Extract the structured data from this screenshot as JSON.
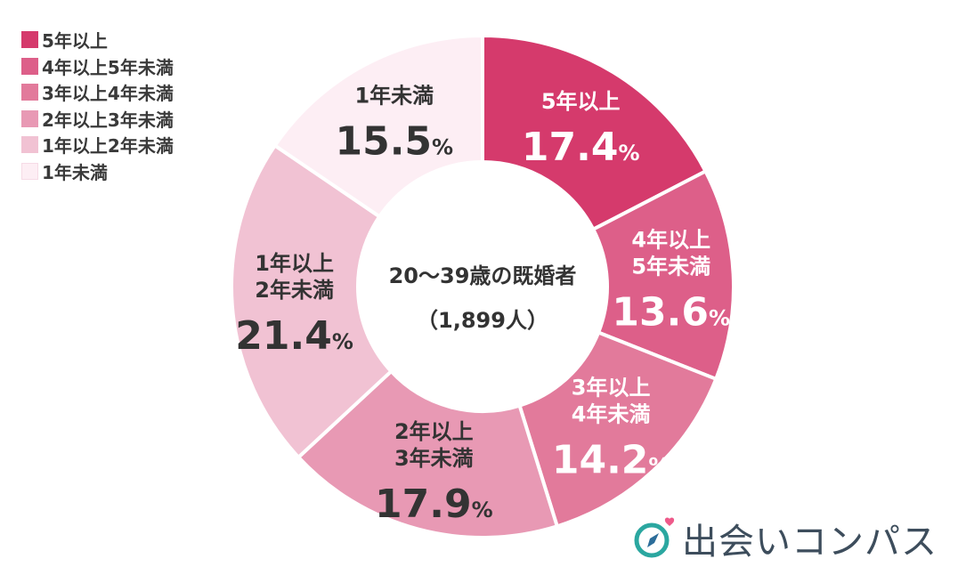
{
  "chart_data": {
    "type": "pie",
    "center_text": {
      "line1": "20〜39歳の既婚者",
      "line2": "（1,899人）"
    },
    "legend_placement": "top-left",
    "percent_unit": "%",
    "slices": [
      {
        "legend": "5年以上",
        "label_lines": [
          "5年以上"
        ],
        "value": 17.4,
        "value_text": "17.4",
        "color": "#d53a6c",
        "label_color": "#ffffff"
      },
      {
        "legend": "4年以上5年未満",
        "label_lines": [
          "4年以上",
          "5年未満"
        ],
        "value": 13.6,
        "value_text": "13.6",
        "color": "#dd5f89",
        "label_color": "#ffffff"
      },
      {
        "legend": "3年以上4年未満",
        "label_lines": [
          "3年以上",
          "4年未満"
        ],
        "value": 14.2,
        "value_text": "14.2",
        "color": "#e27a9b",
        "label_color": "#ffffff"
      },
      {
        "legend": "2年以上3年未満",
        "label_lines": [
          "2年以上",
          "3年未満"
        ],
        "value": 17.9,
        "value_text": "17.9",
        "color": "#e899b4",
        "label_color": "#333333"
      },
      {
        "legend": "1年以上2年未満",
        "label_lines": [
          "1年以上",
          "2年未満"
        ],
        "value": 21.4,
        "value_text": "21.4",
        "color": "#f1c2d3",
        "label_color": "#333333"
      },
      {
        "legend": "1年未満",
        "label_lines": [
          "1年未満"
        ],
        "value": 15.5,
        "value_text": "15.5",
        "color": "#fdeef4",
        "label_color": "#333333"
      }
    ]
  },
  "brand": {
    "name": "出会いコンパス",
    "colors": {
      "heart": "#ee5a8a",
      "ring": "#2ba7a0",
      "needle": "#2c6d9a",
      "text": "#3d4d5c"
    }
  }
}
